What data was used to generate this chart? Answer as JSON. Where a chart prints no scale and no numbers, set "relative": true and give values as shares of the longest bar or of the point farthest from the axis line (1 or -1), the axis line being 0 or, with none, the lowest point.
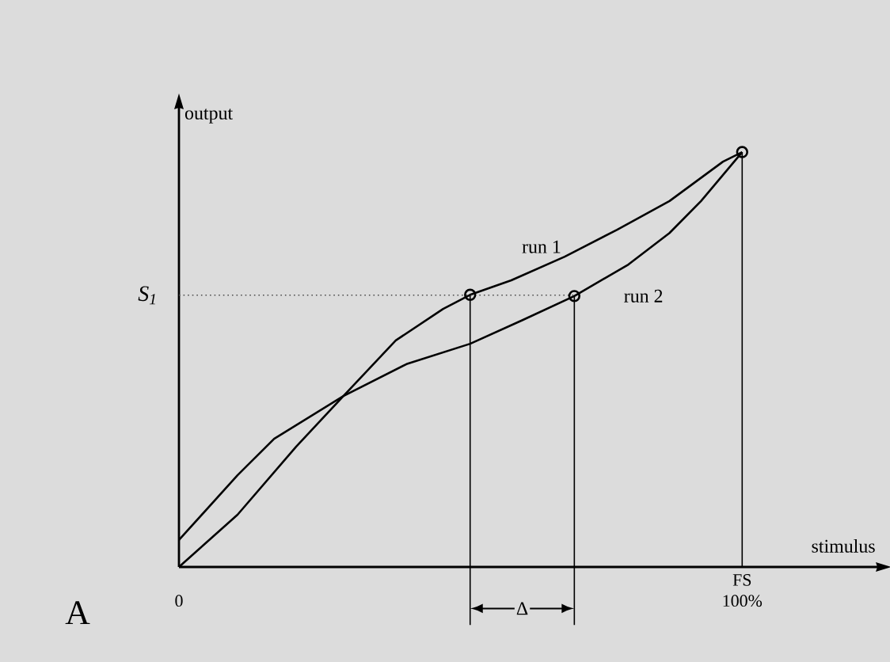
{
  "chart_data": {
    "type": "line",
    "relative": true,
    "xlabel": "stimulus",
    "ylabel": "output",
    "xlim": [
      0,
      124
    ],
    "xticks": [
      0,
      {
        "value": 100,
        "label": "100%"
      }
    ],
    "legend": false,
    "marker": "none",
    "line_style": "solid",
    "series": [
      {
        "name": "run 1",
        "color": "#000000",
        "x": [
          0,
          10.4,
          20.8,
          29.2,
          38.5,
          46.9,
          51.7,
          59,
          68.5,
          77.8,
          87.1,
          96.6,
          100
        ],
        "values": [
          0,
          0.126,
          0.29,
          0.412,
          0.546,
          0.622,
          0.656,
          0.691,
          0.748,
          0.813,
          0.882,
          0.977,
          1
        ]
      },
      {
        "name": "run 2",
        "color": "#000000",
        "x": [
          0,
          10.4,
          16.9,
          29.2,
          40.4,
          51.7,
          61,
          70.2,
          79.8,
          87.1,
          92.7,
          100
        ],
        "values": [
          0.065,
          0.221,
          0.309,
          0.412,
          0.489,
          0.538,
          0.595,
          0.653,
          0.729,
          0.805,
          0.882,
          1
        ]
      },
      {
        "type": "scatter",
        "marker": "circle",
        "color": "#000000",
        "x": [
          51.7,
          70.2,
          100
        ],
        "values": [
          0.656,
          0.653,
          1
        ]
      }
    ],
    "ref_lines": [
      {
        "axis": "y",
        "value": 0.655,
        "label": "S$_{1}$",
        "line_style": "dotted"
      },
      {
        "axis": "x",
        "value": 51.7
      },
      {
        "axis": "x",
        "value": 70.2
      },
      {
        "axis": "x",
        "value": 100
      }
    ],
    "annotations": [
      "Δ",
      "A",
      "FS"
    ]
  }
}
